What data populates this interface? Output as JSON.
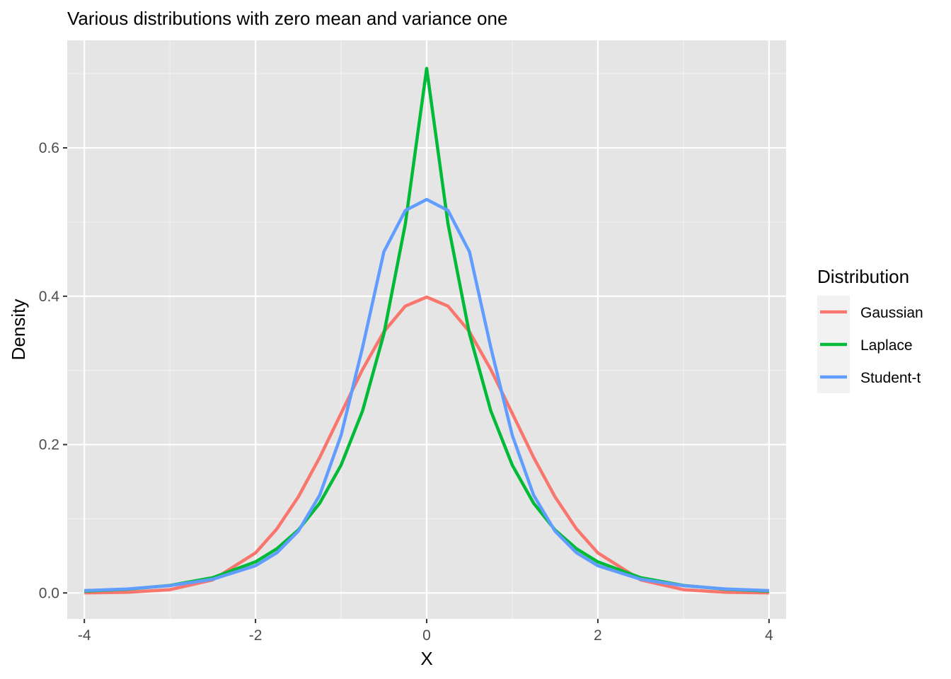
{
  "chart_data": {
    "type": "line",
    "title": "Various distributions with zero mean and variance one",
    "xlabel": "X",
    "ylabel": "Density",
    "xlim": [
      -4.2,
      4.2
    ],
    "ylim": [
      -0.035,
      0.745
    ],
    "x_ticks": [
      -4,
      -2,
      0,
      2,
      4
    ],
    "x_tick_labels": [
      "-4",
      "-2",
      "0",
      "2",
      "4"
    ],
    "x_minor_ticks": [
      -3,
      -1,
      1,
      3
    ],
    "y_ticks": [
      0.0,
      0.2,
      0.4,
      0.6
    ],
    "y_tick_labels": [
      "0.0",
      "0.2",
      "0.4",
      "0.6"
    ],
    "y_minor_ticks": [
      0.1,
      0.3,
      0.5,
      0.7
    ],
    "grid": true,
    "panel_background": "#e5e5e5",
    "legend": {
      "title": "Distribution",
      "position": "right"
    },
    "x": [
      -4,
      -3.5,
      -3,
      -2.5,
      -2,
      -1.75,
      -1.5,
      -1.25,
      -1,
      -0.75,
      -0.5,
      -0.25,
      0,
      0.25,
      0.5,
      0.75,
      1,
      1.25,
      1.5,
      1.75,
      2,
      2.5,
      3,
      3.5,
      4
    ],
    "series": [
      {
        "name": "Gaussian",
        "color": "#f8766d",
        "values": [
          0.0001,
          0.0009,
          0.0044,
          0.0175,
          0.054,
          0.0863,
          0.1295,
          0.1826,
          0.242,
          0.3011,
          0.3521,
          0.3867,
          0.3989,
          0.3867,
          0.3521,
          0.3011,
          0.242,
          0.1826,
          0.1295,
          0.0863,
          0.054,
          0.0175,
          0.0044,
          0.0009,
          0.0001
        ]
      },
      {
        "name": "Laplace",
        "color": "#00ba38",
        "values": [
          0.0025,
          0.005,
          0.0101,
          0.0206,
          0.0419,
          0.0596,
          0.0849,
          0.1209,
          0.1722,
          0.2452,
          0.3492,
          0.4973,
          0.7071,
          0.4973,
          0.3492,
          0.2452,
          0.1722,
          0.1209,
          0.0849,
          0.0596,
          0.0419,
          0.0206,
          0.0101,
          0.005,
          0.0025
        ]
      },
      {
        "name": "Student-t",
        "color": "#619cff",
        "values": [
          0.0031,
          0.0053,
          0.0098,
          0.0184,
          0.0367,
          0.0542,
          0.0832,
          0.1318,
          0.2124,
          0.3306,
          0.4599,
          0.5156,
          0.5305,
          0.5156,
          0.4599,
          0.3306,
          0.2124,
          0.1318,
          0.0832,
          0.0542,
          0.0367,
          0.0184,
          0.0098,
          0.0053,
          0.0031
        ]
      }
    ]
  }
}
